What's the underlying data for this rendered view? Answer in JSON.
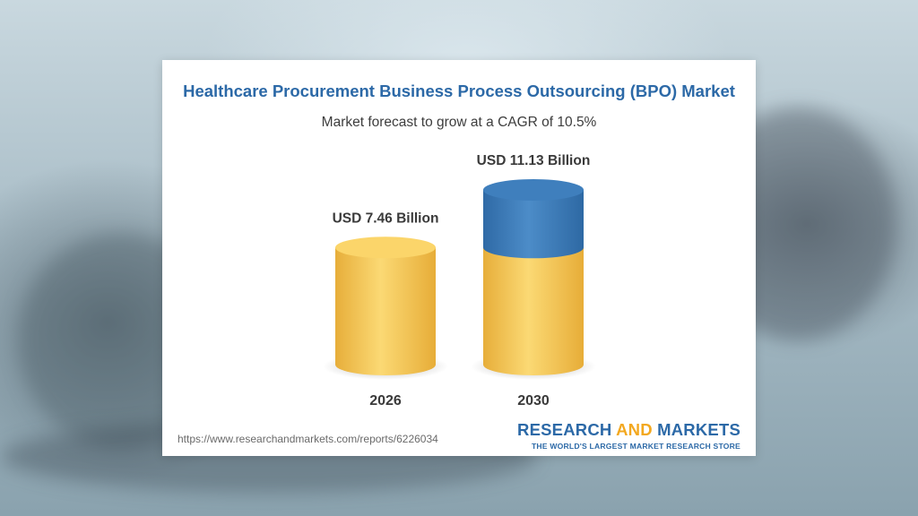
{
  "chart_data": {
    "type": "bar",
    "style": "3d-cylinder",
    "title": "Healthcare Procurement Business Process Outsourcing (BPO) Market",
    "subtitle": "Market forecast to grow at a CAGR of 10.5%",
    "categories": [
      "2026",
      "2030"
    ],
    "values": [
      7.46,
      11.13
    ],
    "data_labels": [
      "USD 7.46 Billion",
      "USD 11.13 Billion"
    ],
    "unit": "USD Billion",
    "ylim": [
      0,
      11.13
    ],
    "colors": {
      "base": "#f0c14b",
      "growth": "#3a77b2"
    },
    "grid": false
  },
  "footer": {
    "source_url": "https://www.researchandmarkets.com/reports/6226034",
    "brand_name_part1": "RESEARCH",
    "brand_name_part2": "AND",
    "brand_name_part3": "MARKETS",
    "brand_tagline": "THE WORLD'S LARGEST MARKET RESEARCH STORE"
  }
}
